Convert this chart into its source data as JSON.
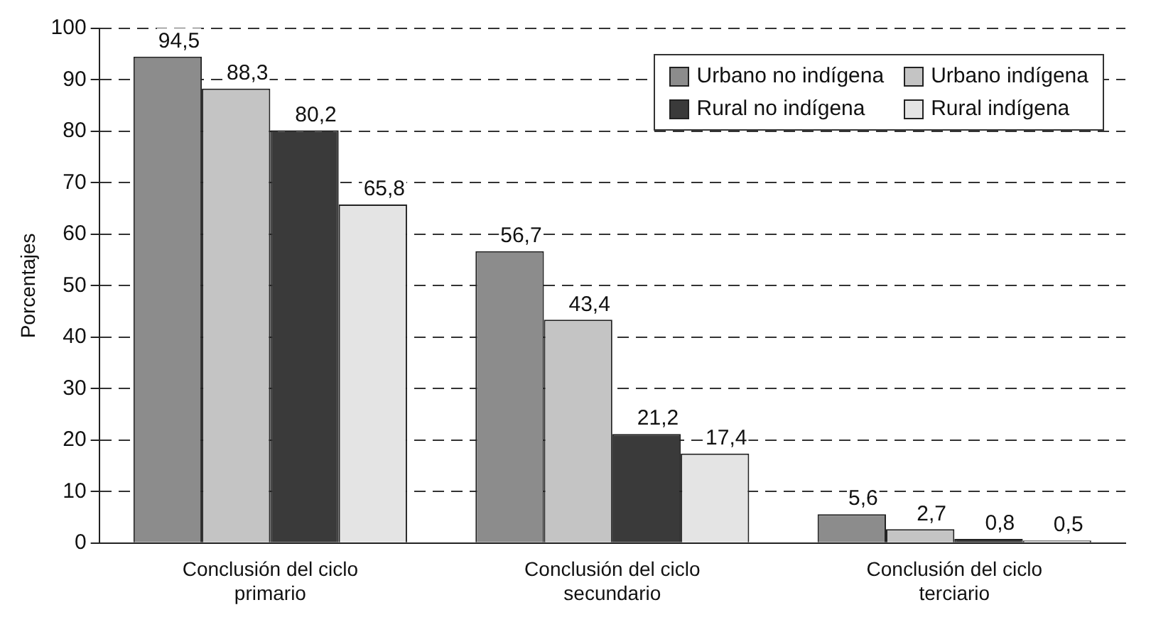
{
  "chart_data": {
    "type": "bar",
    "ylabel": "Porcentajes",
    "categories": [
      "Conclusión del ciclo\nprimario",
      "Conclusión del ciclo\nsecundario",
      "Conclusión del ciclo\nterciario"
    ],
    "series": [
      {
        "name": "Urbano no indígena",
        "color": "#8c8c8c",
        "values": [
          94.5,
          56.7,
          5.6
        ],
        "value_labels": [
          "94,5",
          "56,7",
          "5,6"
        ]
      },
      {
        "name": "Urbano indígena",
        "color": "#c4c4c4",
        "values": [
          88.3,
          43.4,
          2.7
        ],
        "value_labels": [
          "88,3",
          "43,4",
          "2,7"
        ]
      },
      {
        "name": "Rural no indígena",
        "color": "#3a3a3a",
        "values": [
          80.2,
          21.2,
          0.8
        ],
        "value_labels": [
          "80,2",
          "21,2",
          "0,8"
        ]
      },
      {
        "name": "Rural indígena",
        "color": "#e4e4e4",
        "values": [
          65.8,
          17.4,
          0.5
        ],
        "value_labels": [
          "65,8",
          "17,4",
          "0,5"
        ]
      }
    ],
    "ylim": [
      0,
      100
    ],
    "yticks": [
      0,
      10,
      20,
      30,
      40,
      50,
      60,
      70,
      80,
      90,
      100
    ],
    "grid": "y",
    "legend": "top right"
  }
}
